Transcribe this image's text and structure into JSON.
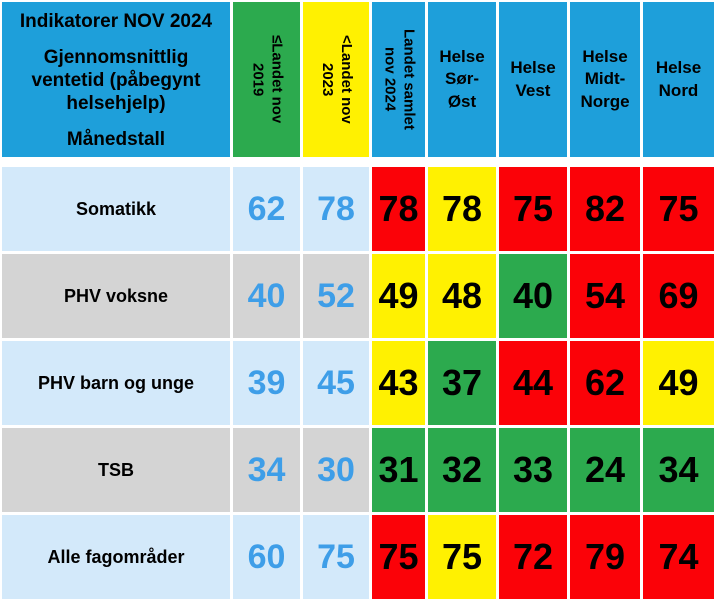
{
  "table": {
    "header": {
      "main": {
        "title": "Indikatorer NOV 2024",
        "subtitle": "Gjennomsnittlig\nventetid (påbegynt\nhelsehjelp)",
        "period": "Månedstall"
      },
      "threshold_cols": [
        {
          "label": "≤Landet nov\n2019",
          "status": "green"
        },
        {
          "label": "<Landet nov\n2023",
          "status": "yellow"
        },
        {
          "label": "Landet samlet\nnov 2024",
          "status": "header_blue"
        }
      ],
      "region_cols": [
        {
          "label": "Helse\nSør-\nØst"
        },
        {
          "label": "Helse\nVest"
        },
        {
          "label": "Helse\nMidt-\nNorge"
        },
        {
          "label": "Helse\nNord"
        }
      ]
    },
    "rows": [
      {
        "label": "Somatikk",
        "ref": [
          "62",
          "78"
        ],
        "cells": [
          {
            "value": "78",
            "status": "red"
          },
          {
            "value": "78",
            "status": "yellow"
          },
          {
            "value": "75",
            "status": "red"
          },
          {
            "value": "82",
            "status": "red"
          },
          {
            "value": "75",
            "status": "red"
          }
        ]
      },
      {
        "label": "PHV voksne",
        "ref": [
          "40",
          "52"
        ],
        "cells": [
          {
            "value": "49",
            "status": "yellow"
          },
          {
            "value": "48",
            "status": "yellow"
          },
          {
            "value": "40",
            "status": "green"
          },
          {
            "value": "54",
            "status": "red"
          },
          {
            "value": "69",
            "status": "red"
          }
        ]
      },
      {
        "label": "PHV barn og unge",
        "ref": [
          "39",
          "45"
        ],
        "cells": [
          {
            "value": "43",
            "status": "yellow"
          },
          {
            "value": "37",
            "status": "green"
          },
          {
            "value": "44",
            "status": "red"
          },
          {
            "value": "62",
            "status": "red"
          },
          {
            "value": "49",
            "status": "yellow"
          }
        ]
      },
      {
        "label": "TSB",
        "ref": [
          "34",
          "30"
        ],
        "cells": [
          {
            "value": "31",
            "status": "green"
          },
          {
            "value": "32",
            "status": "green"
          },
          {
            "value": "33",
            "status": "green"
          },
          {
            "value": "24",
            "status": "green"
          },
          {
            "value": "34",
            "status": "green"
          }
        ]
      },
      {
        "label": "Alle fagområder",
        "ref": [
          "60",
          "75"
        ],
        "cells": [
          {
            "value": "75",
            "status": "red"
          },
          {
            "value": "75",
            "status": "yellow"
          },
          {
            "value": "72",
            "status": "red"
          },
          {
            "value": "79",
            "status": "red"
          },
          {
            "value": "74",
            "status": "red"
          }
        ]
      }
    ]
  },
  "chart_data": {
    "type": "table",
    "title": "Indikatorer NOV 2024",
    "subtitle": "Gjennomsnittlig ventetid (påbegynt helsehjelp) — Månedstall",
    "columns": [
      "≤Landet nov 2019",
      "<Landet nov 2023",
      "Landet samlet nov 2024",
      "Helse Sør-Øst",
      "Helse Vest",
      "Helse Midt-Norge",
      "Helse Nord"
    ],
    "row_labels": [
      "Somatikk",
      "PHV voksne",
      "PHV barn og unge",
      "TSB",
      "Alle fagområder"
    ],
    "values": [
      [
        62,
        78,
        78,
        78,
        75,
        82,
        75
      ],
      [
        40,
        52,
        49,
        48,
        40,
        54,
        69
      ],
      [
        39,
        45,
        43,
        37,
        44,
        62,
        49
      ],
      [
        34,
        30,
        31,
        32,
        33,
        24,
        34
      ],
      [
        60,
        75,
        75,
        75,
        72,
        79,
        74
      ]
    ],
    "cell_status": [
      [
        null,
        null,
        "red",
        "yellow",
        "red",
        "red",
        "red"
      ],
      [
        null,
        null,
        "yellow",
        "yellow",
        "green",
        "red",
        "red"
      ],
      [
        null,
        null,
        "yellow",
        "green",
        "red",
        "red",
        "yellow"
      ],
      [
        null,
        null,
        "green",
        "green",
        "green",
        "green",
        "green"
      ],
      [
        null,
        null,
        "red",
        "yellow",
        "red",
        "red",
        "red"
      ]
    ]
  },
  "colors": {
    "header_blue": "#1E9FDA",
    "row_blue": "#D3E9FA",
    "row_gray": "#D4D4D4",
    "green": "#2CAA4E",
    "yellow": "#FFF101",
    "red": "#FB0208",
    "num_blue": "#3E9EE8"
  }
}
